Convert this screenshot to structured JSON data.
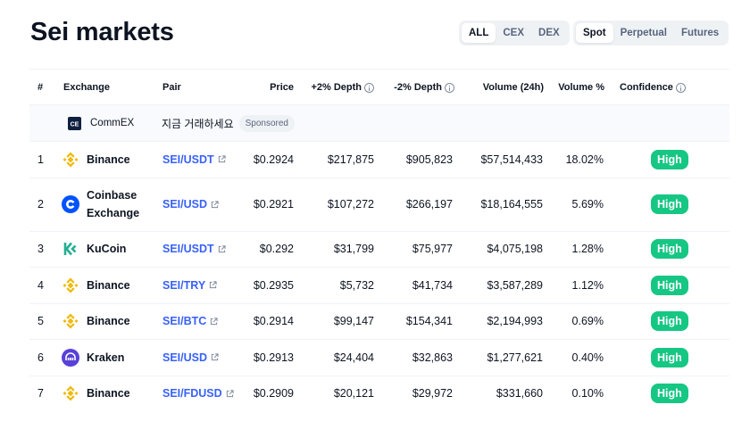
{
  "page": {
    "title": "Sei markets"
  },
  "filters": {
    "market_type": [
      {
        "label": "ALL",
        "active": true
      },
      {
        "label": "CEX",
        "active": false
      },
      {
        "label": "DEX",
        "active": false
      }
    ],
    "category": [
      {
        "label": "Spot",
        "active": true
      },
      {
        "label": "Perpetual",
        "active": false
      },
      {
        "label": "Futures",
        "active": false
      }
    ]
  },
  "table": {
    "headers": {
      "rank": "#",
      "exchange": "Exchange",
      "pair": "Pair",
      "price": "Price",
      "depth_plus": "+2% Depth",
      "depth_minus": "-2% Depth",
      "volume": "Volume (24h)",
      "volume_pct": "Volume %",
      "confidence": "Confidence"
    },
    "sponsored": {
      "exchange": "CommEX",
      "text": "지금 거래하세요",
      "badge": "Sponsored",
      "logo_icon": "commex-logo-icon"
    },
    "rows": [
      {
        "rank": "1",
        "exchange": "Binance",
        "pair": "SEI/USDT",
        "price": "$0.2924",
        "depth_plus": "$217,875",
        "depth_minus": "$905,823",
        "volume": "$57,514,433",
        "volume_pct": "18.02%",
        "confidence": "High",
        "logo": "binance"
      },
      {
        "rank": "2",
        "exchange": "Coinbase Exchange",
        "pair": "SEI/USD",
        "price": "$0.2921",
        "depth_plus": "$107,272",
        "depth_minus": "$266,197",
        "volume": "$18,164,555",
        "volume_pct": "5.69%",
        "confidence": "High",
        "logo": "coinbase"
      },
      {
        "rank": "3",
        "exchange": "KuCoin",
        "pair": "SEI/USDT",
        "price": "$0.292",
        "depth_plus": "$31,799",
        "depth_minus": "$75,977",
        "volume": "$4,075,198",
        "volume_pct": "1.28%",
        "confidence": "High",
        "logo": "kucoin"
      },
      {
        "rank": "4",
        "exchange": "Binance",
        "pair": "SEI/TRY",
        "price": "$0.2935",
        "depth_plus": "$5,732",
        "depth_minus": "$41,734",
        "volume": "$3,587,289",
        "volume_pct": "1.12%",
        "confidence": "High",
        "logo": "binance"
      },
      {
        "rank": "5",
        "exchange": "Binance",
        "pair": "SEI/BTC",
        "price": "$0.2914",
        "depth_plus": "$99,147",
        "depth_minus": "$154,341",
        "volume": "$2,194,993",
        "volume_pct": "0.69%",
        "confidence": "High",
        "logo": "binance"
      },
      {
        "rank": "6",
        "exchange": "Kraken",
        "pair": "SEI/USD",
        "price": "$0.2913",
        "depth_plus": "$24,404",
        "depth_minus": "$32,863",
        "volume": "$1,277,621",
        "volume_pct": "0.40%",
        "confidence": "High",
        "logo": "kraken"
      },
      {
        "rank": "7",
        "exchange": "Binance",
        "pair": "SEI/FDUSD",
        "price": "$0.2909",
        "depth_plus": "$20,121",
        "depth_minus": "$29,972",
        "volume": "$331,660",
        "volume_pct": "0.10%",
        "confidence": "High",
        "logo": "binance"
      }
    ]
  },
  "colors": {
    "pair_link": "#3861fb",
    "confidence_high": "#16c784",
    "binance": "#f0b90b",
    "coinbase": "#0052ff",
    "kucoin": "#23af91",
    "kraken": "#5741d9"
  }
}
